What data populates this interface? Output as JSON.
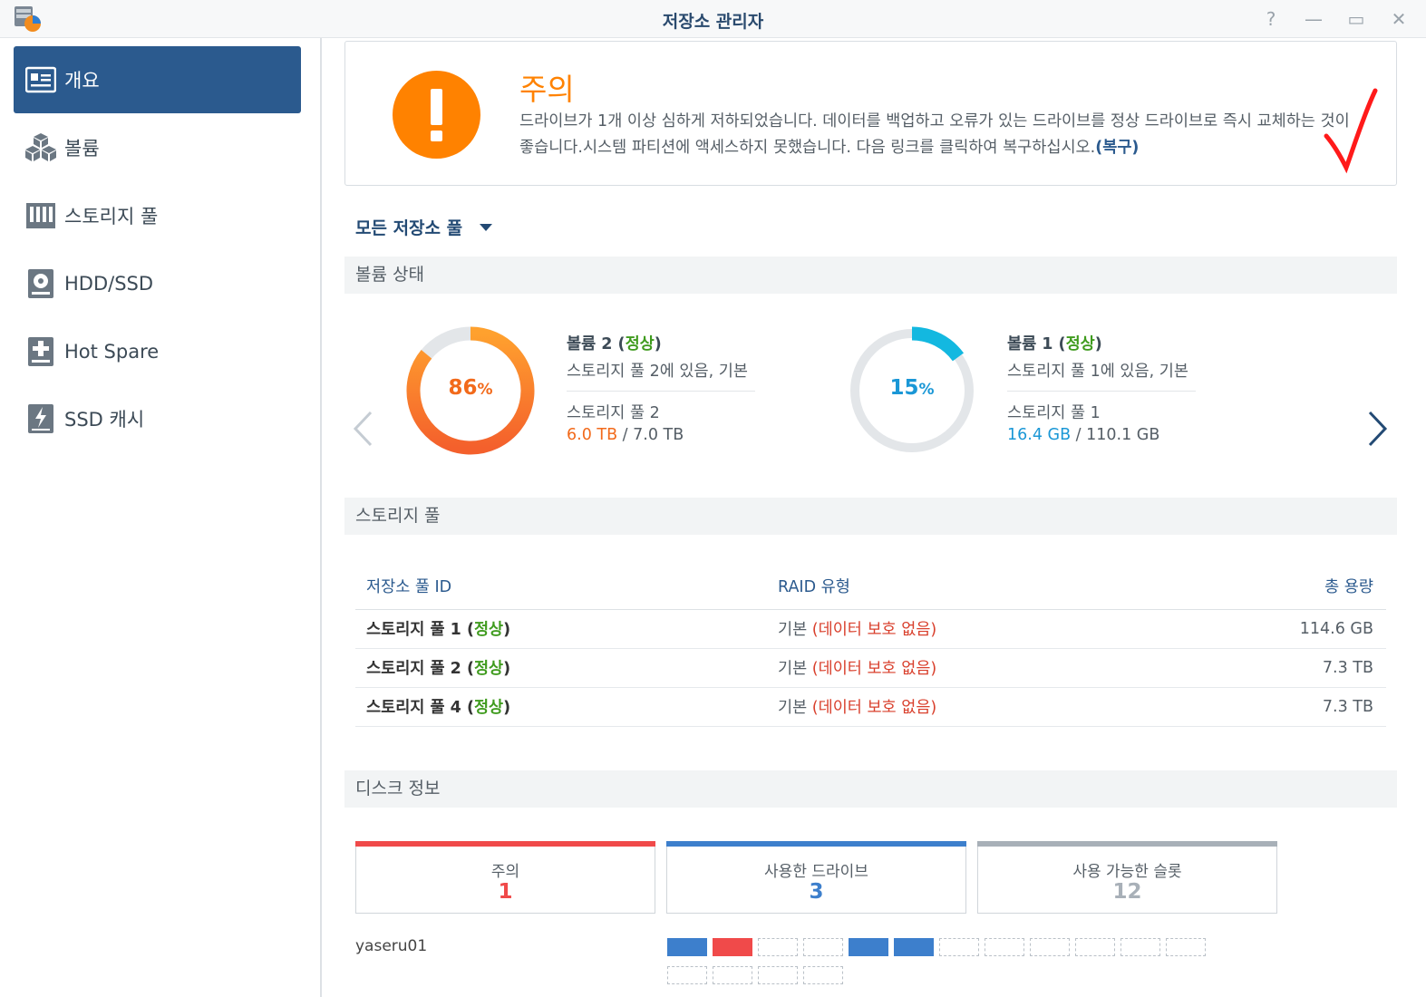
{
  "window": {
    "title": "저장소 관리자",
    "help": "?",
    "minimize": "—",
    "maximize": "▭",
    "close": "✕"
  },
  "sidebar": {
    "items": [
      {
        "label": "개요",
        "icon": "overview-icon",
        "active": true
      },
      {
        "label": "볼륨",
        "icon": "volume-cubes-icon"
      },
      {
        "label": "스토리지 풀",
        "icon": "storage-pool-icon"
      },
      {
        "label": "HDD/SSD",
        "icon": "hdd-icon"
      },
      {
        "label": "Hot Spare",
        "icon": "hot-spare-icon"
      },
      {
        "label": "SSD 캐시",
        "icon": "ssd-cache-icon"
      }
    ]
  },
  "alert": {
    "title": "주의",
    "message": "드라이브가 1개 이상 심하게 저하되었습니다. 데이터를 백업하고 오류가 있는 드라이브를 정상 드라이브로 즉시 교체하는 것이 좋습니다.시스템 파티션에 액세스하지 못했습니다. 다음 링크를 클릭하여 복구하십시오.",
    "link": "(복구)",
    "color": "#ff8200"
  },
  "filter": {
    "label": "모든 저장소 풀"
  },
  "volume_status": {
    "header": "볼륨 상태",
    "volumes": [
      {
        "percent": "86",
        "unit": "%",
        "fraction": 0.86,
        "name": "볼륨 2 (",
        "status": "정상",
        "close": ")",
        "location": "스토리지 풀 2에 있음, 기본",
        "pool": "스토리지 풀 2",
        "used": "6.0 TB",
        "slash": " / ",
        "total": "7.0 TB",
        "color": "#f26a1b"
      },
      {
        "percent": "15",
        "unit": "%",
        "fraction": 0.15,
        "name": "볼륨 1 (",
        "status": "정상",
        "close": ")",
        "location": "스토리지 풀 1에 있음, 기본",
        "pool": "스토리지 풀 1",
        "used": "16.4 GB",
        "slash": " / ",
        "total": "110.1 GB",
        "color": "#1a97d6"
      }
    ]
  },
  "storage_pools": {
    "header": "스토리지 풀",
    "columns": [
      "저장소 풀 ID",
      "RAID 유형",
      "총 용량"
    ],
    "rows": [
      {
        "name": "스토리지 풀 1 (",
        "status": "정상",
        "close": ")",
        "raid": "기본 ",
        "raid_note": "(데이터 보호 없음)",
        "capacity": "114.6 GB"
      },
      {
        "name": "스토리지 풀 2 (",
        "status": "정상",
        "close": ")",
        "raid": "기본 ",
        "raid_note": "(데이터 보호 없음)",
        "capacity": "7.3 TB"
      },
      {
        "name": "스토리지 풀 4 (",
        "status": "정상",
        "close": ")",
        "raid": "기본 ",
        "raid_note": "(데이터 보호 없음)",
        "capacity": "7.3 TB"
      }
    ]
  },
  "disk_info": {
    "header": "디스크 정보",
    "cards": [
      {
        "label": "주의",
        "value": "1",
        "color": "#f04a4a"
      },
      {
        "label": "사용한 드라이브",
        "value": "3",
        "color": "#3d7fcc"
      },
      {
        "label": "사용 가능한 슬롯",
        "value": "12",
        "color": "#a8b0b8"
      }
    ],
    "host": "yaseru01",
    "slots": [
      "used",
      "warn",
      "empty",
      "empty",
      "used",
      "used",
      "empty",
      "empty",
      "empty",
      "empty",
      "empty",
      "empty",
      "empty",
      "empty",
      "empty",
      "empty"
    ]
  }
}
